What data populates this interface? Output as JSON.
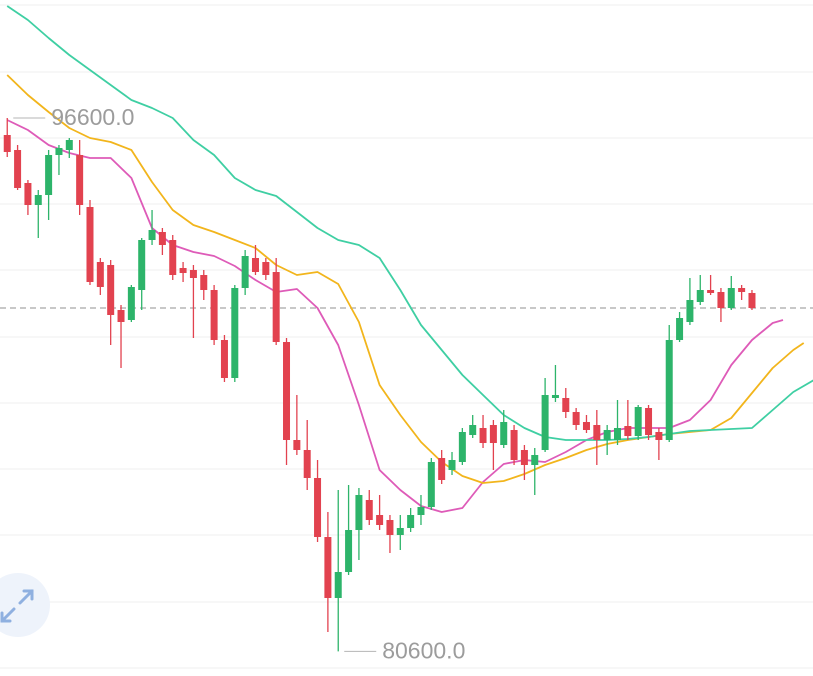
{
  "chart_data": {
    "type": "candlestick",
    "xlim": [
      -0.7,
      77.9
    ],
    "ylim": [
      79860,
      100140
    ],
    "up_color": "#2db46a",
    "down_color": "#e2424f",
    "open": [
      96090,
      95640,
      94650,
      93990,
      94290,
      95490,
      95640,
      95490,
      93930,
      92280,
      92190,
      90840,
      90540,
      91440,
      92940,
      93180,
      92940,
      92100,
      92040,
      91890,
      91440,
      89940,
      88800,
      91500,
      92400,
      92280,
      91980,
      89880,
      86940,
      86640,
      85800,
      84030,
      82200,
      82980,
      84240,
      85140,
      84690,
      84540,
      84090,
      84300,
      84690,
      84930,
      86400,
      86040,
      86280,
      87090,
      87300,
      87390,
      86790,
      87240,
      86640,
      86190,
      86640,
      88200,
      88200,
      87780,
      87480,
      87390,
      86940,
      86940,
      87360,
      87060,
      87900,
      87180,
      86940,
      89940,
      90480,
      91080,
      91440,
      91380,
      90900,
      91500,
      91350
    ],
    "high": [
      96600,
      95790,
      94740,
      94440,
      95640,
      95790,
      96000,
      95940,
      94140,
      92400,
      92340,
      90990,
      91590,
      93000,
      93840,
      93300,
      93090,
      92280,
      92190,
      92040,
      91590,
      90090,
      91590,
      92640,
      92790,
      92400,
      92400,
      90000,
      88290,
      87540,
      86340,
      84780,
      85440,
      85590,
      85500,
      85440,
      85290,
      84690,
      84690,
      84900,
      85290,
      86400,
      86640,
      86580,
      87300,
      87690,
      87690,
      87540,
      87840,
      87390,
      86790,
      86700,
      88800,
      89190,
      88500,
      87900,
      87690,
      87840,
      87390,
      88140,
      88140,
      87990,
      87990,
      87300,
      90390,
      90780,
      91800,
      91890,
      91890,
      91500,
      91860,
      91590,
      91440
    ],
    "low": [
      95430,
      94440,
      93690,
      93000,
      93540,
      94890,
      95400,
      93690,
      91590,
      91290,
      89790,
      89100,
      90480,
      90840,
      92790,
      92490,
      91740,
      91680,
      90000,
      91140,
      89790,
      88680,
      88680,
      91290,
      91890,
      91740,
      89790,
      86190,
      86490,
      85440,
      83880,
      81180,
      80600,
      82890,
      83340,
      84390,
      84240,
      83550,
      83640,
      84180,
      84390,
      84840,
      85620,
      85890,
      86190,
      87000,
      86700,
      86040,
      86700,
      86190,
      85740,
      85290,
      86580,
      88080,
      87600,
      87240,
      87150,
      86190,
      86490,
      86790,
      86940,
      86940,
      86940,
      86340,
      86880,
      89880,
      90390,
      90990,
      91290,
      90480,
      90840,
      91140,
      90840
    ],
    "close": [
      95580,
      94500,
      93990,
      94290,
      95490,
      95700,
      95940,
      93990,
      91680,
      91530,
      90690,
      90480,
      91530,
      92940,
      93240,
      92790,
      91890,
      91950,
      91800,
      91440,
      89940,
      88800,
      91500,
      92460,
      91980,
      91890,
      89880,
      86940,
      86640,
      85800,
      84030,
      82200,
      82980,
      84240,
      85290,
      84540,
      84390,
      84090,
      84300,
      84690,
      84930,
      86280,
      85740,
      86340,
      87180,
      87390,
      86850,
      86850,
      87480,
      86340,
      86190,
      86490,
      88290,
      88290,
      87780,
      87390,
      87240,
      86940,
      87240,
      87300,
      87060,
      87930,
      87090,
      86940,
      89940,
      90600,
      91140,
      91440,
      91350,
      90900,
      91500,
      91380,
      90900
    ],
    "last_price": 90900,
    "series": [
      {
        "color": "#de5bb8",
        "x": [
          0,
          2,
          4,
          6,
          8,
          10,
          12,
          14,
          16,
          18,
          20,
          22,
          24,
          26,
          28,
          30,
          32,
          34,
          36,
          38,
          40,
          42,
          44,
          46,
          48,
          50,
          52,
          54,
          56,
          58,
          60,
          62,
          64,
          66,
          68,
          70,
          72,
          74,
          75
        ],
        "values": [
          96540,
          96240,
          95790,
          95550,
          95400,
          95400,
          94800,
          93300,
          92790,
          92580,
          92460,
          92160,
          91740,
          91380,
          91470,
          90900,
          89790,
          87990,
          86040,
          85440,
          84960,
          84780,
          84900,
          85680,
          86220,
          86340,
          86280,
          86580,
          86940,
          87180,
          87300,
          87300,
          87300,
          87540,
          88140,
          89190,
          89940,
          90450,
          90540
        ]
      },
      {
        "color": "#f2b51c",
        "x": [
          0,
          2,
          4,
          6,
          8,
          10,
          12,
          14,
          16,
          18,
          20,
          22,
          24,
          26,
          28,
          30,
          32,
          34,
          36,
          38,
          40,
          42,
          44,
          46,
          48,
          50,
          52,
          54,
          56,
          58,
          60,
          62,
          64,
          66,
          68,
          70,
          72,
          74,
          76,
          77
        ],
        "values": [
          97890,
          97290,
          96780,
          96300,
          96000,
          95880,
          95640,
          94680,
          93840,
          93390,
          93180,
          92940,
          92700,
          92190,
          91890,
          91980,
          91620,
          90480,
          88590,
          87690,
          86880,
          86280,
          85860,
          85650,
          85710,
          85920,
          86190,
          86400,
          86640,
          86820,
          86940,
          87030,
          87120,
          87180,
          87240,
          87600,
          88350,
          89100,
          89640,
          89850
        ]
      },
      {
        "color": "#3fcfa3",
        "x": [
          0,
          2,
          4,
          6,
          8,
          10,
          12,
          14,
          16,
          18,
          20,
          22,
          24,
          26,
          28,
          30,
          32,
          34,
          36,
          38,
          40,
          42,
          44,
          46,
          48,
          50,
          52,
          54,
          56,
          58,
          60,
          62,
          64,
          66,
          68,
          70,
          72,
          74,
          76,
          78
        ],
        "values": [
          99960,
          99540,
          99000,
          98490,
          98040,
          97590,
          97140,
          96900,
          96600,
          95940,
          95490,
          94800,
          94440,
          94260,
          93780,
          93300,
          92940,
          92790,
          92400,
          91440,
          90390,
          89640,
          88890,
          88290,
          87690,
          87300,
          87030,
          86940,
          86940,
          86940,
          86970,
          87030,
          87120,
          87210,
          87240,
          87270,
          87300,
          87840,
          88380,
          88740
        ]
      }
    ],
    "annotations": [
      {
        "text": "96600.0"
      },
      {
        "text": "80600.0"
      }
    ]
  }
}
